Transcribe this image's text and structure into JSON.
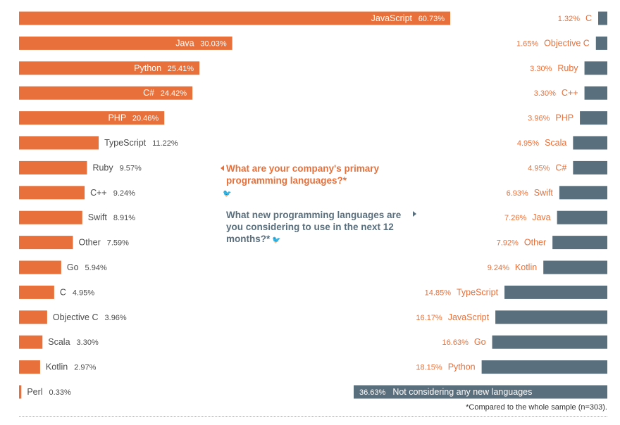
{
  "colors": {
    "left": "#e8703a",
    "right": "#5a6f7d"
  },
  "questions": {
    "primary": "What are your company's primary programming languages?*",
    "new": "What new programming languages are you considering to use in the next 12 months?*"
  },
  "footnote": "*Compared to the whole sample (n=303).",
  "chart_data": [
    {
      "type": "bar",
      "orientation": "horizontal",
      "question": "What are your company's primary programming languages?*",
      "categories": [
        "JavaScript",
        "Java",
        "Python",
        "C#",
        "PHP",
        "TypeScript",
        "Ruby",
        "C++",
        "Swift",
        "Other",
        "Go",
        "C",
        "Objective C",
        "Scala",
        "Kotlin",
        "Perl"
      ],
      "values": [
        60.73,
        30.03,
        25.41,
        24.42,
        20.46,
        11.22,
        9.57,
        9.24,
        8.91,
        7.59,
        5.94,
        4.95,
        3.96,
        3.3,
        2.97,
        0.33
      ],
      "labels": [
        "60.73%",
        "30.03%",
        "25.41%",
        "24.42%",
        "20.46%",
        "11.22%",
        "9.57%",
        "9.24%",
        "8.91%",
        "7.59%",
        "5.94%",
        "4.95%",
        "3.96%",
        "3.30%",
        "2.97%",
        "0.33%"
      ],
      "color": "#e8703a"
    },
    {
      "type": "bar",
      "orientation": "horizontal",
      "question": "What new programming languages are you considering to use in the next 12 months?*",
      "categories": [
        "C",
        "Objective C",
        "Ruby",
        "C++",
        "PHP",
        "Scala",
        "C#",
        "Swift",
        "Java",
        "Other",
        "Kotlin",
        "TypeScript",
        "JavaScript",
        "Go",
        "Python",
        "Not considering any new languages"
      ],
      "values": [
        1.32,
        1.65,
        3.3,
        3.3,
        3.96,
        4.95,
        4.95,
        6.93,
        7.26,
        7.92,
        9.24,
        14.85,
        16.17,
        16.63,
        18.15,
        36.63
      ],
      "labels": [
        "1.32%",
        "1.65%",
        "3.30%",
        "3.30%",
        "3.96%",
        "4.95%",
        "4.95%",
        "6.93%",
        "7.26%",
        "7.92%",
        "9.24%",
        "14.85%",
        "16.17%",
        "16.63%",
        "18.15%",
        "36.63%"
      ],
      "color": "#5a6f7d"
    }
  ]
}
